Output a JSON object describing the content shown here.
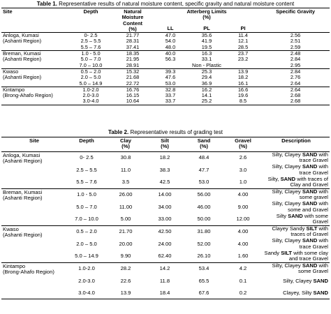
{
  "table1": {
    "caption_label": "Table 1.",
    "caption_text": " Representative results of natural moisture content, specific gravity and natural moisture content",
    "headers": {
      "site": "Site",
      "depth": "Depth",
      "nmc_line1": "Natural",
      "nmc_line2": "Moisture",
      "nmc_line3": "Content",
      "nmc_line4": "(%)",
      "atterberg": "Atterberg Limits",
      "atterberg_unit": "(%)",
      "ll": "LL",
      "pl": "PL",
      "pi": "PI",
      "sg": "Specific Gravity"
    },
    "groups": [
      {
        "site_line1": "Anloga, Kumasi",
        "site_line2": "(Ashanti Region)",
        "rows": [
          {
            "depth": "0- 2.5",
            "nmc": "21.77",
            "ll": "47.0",
            "pl": "35.6",
            "pi": "11.4",
            "sg": "2.56"
          },
          {
            "depth": "2.5 – 5.5",
            "nmc": "28.31",
            "ll": "54.0",
            "pl": "41.9",
            "pi": "12.1",
            "sg": "2.51"
          },
          {
            "depth": "5.5 – 7.6",
            "nmc": "37.41",
            "ll": "48.0",
            "pl": "19.5",
            "pi": "28.5",
            "sg": "2.59"
          }
        ]
      },
      {
        "site_line1": "Breman, Kumasi",
        "site_line2": "(Ashanti Region)",
        "rows": [
          {
            "depth": "1.0 - 5.0",
            "nmc": "18.35",
            "ll": "40.0",
            "pl": "16.3",
            "pi": "23.7",
            "sg": "2.48"
          },
          {
            "depth": "5.0 – 7.0",
            "nmc": "21.95",
            "ll": "56.3",
            "pl": "33.1",
            "pi": "23.2",
            "sg": "2.84"
          },
          {
            "depth": "7.0 – 10.0",
            "nmc": "28.91",
            "ll": "",
            "pl": "Non - Plastic",
            "pi": "",
            "sg": "2.95"
          }
        ]
      },
      {
        "site_line1": "Kwaso",
        "site_line2": "(Ashanti Region)",
        "rows": [
          {
            "depth": "0.5 – 2.0",
            "nmc": "15.32",
            "ll": "39.3",
            "pl": "25.3",
            "pi": "13.9",
            "sg": "2.84"
          },
          {
            "depth": "2.0 – 5.0",
            "nmc": "21.68",
            "ll": "47.6",
            "pl": "29.4",
            "pi": "18.2",
            "sg": "2.76"
          },
          {
            "depth": "5.0 – 14.9",
            "nmc": "22.72",
            "ll": "53.0",
            "pl": "36.9",
            "pi": "16.1",
            "sg": "2.64"
          }
        ]
      },
      {
        "site_line1": "Kintampo",
        "site_line2": "(Brong-Ahafo Region)",
        "rows": [
          {
            "depth": "1.0-2.0",
            "nmc": "16.76",
            "ll": "32.8",
            "pl": "16.2",
            "pi": "16.6",
            "sg": "2.64"
          },
          {
            "depth": "2.0-3.0",
            "nmc": "16.15",
            "ll": "33.7",
            "pl": "14.1",
            "pi": "19.6",
            "sg": "2.68"
          },
          {
            "depth": "3.0-4.0",
            "nmc": "10.64",
            "ll": "33.7",
            "pl": "25.2",
            "pi": "8.5",
            "sg": "2.68"
          }
        ]
      }
    ]
  },
  "table2": {
    "caption_label": "Table 2.",
    "caption_text": " Representative results of grading test",
    "headers": {
      "site": "Site",
      "depth": "Depth",
      "clay": "Clay",
      "silt": "Silt",
      "sand": "Sand",
      "gravel": "Gravel",
      "unit": "(%)",
      "description": "Description"
    },
    "groups": [
      {
        "site_line1": "Anloga, Kumasi",
        "site_line2": "(Ashanti Region)",
        "rows": [
          {
            "depth": "0- 2.5",
            "clay": "30.8",
            "silt": "18.2",
            "sand": "48.4",
            "gravel": "2.6",
            "desc_pre": "Silty, Clayey ",
            "desc_bold": "SAND",
            "desc_post": " with trace Gravel"
          },
          {
            "depth": "2.5 – 5.5",
            "clay": "11.0",
            "silt": "38.3",
            "sand": "47.7",
            "gravel": "3.0",
            "desc_pre": "Silty, Clayey ",
            "desc_bold": "SAND",
            "desc_post": " with trace Gravel"
          },
          {
            "depth": "5.5 – 7.6",
            "clay": "3.5",
            "silt": "42.5",
            "sand": "53.0",
            "gravel": "1.0",
            "desc_pre": "Silty, ",
            "desc_bold": "SAND",
            "desc_post": " with traces of Clay and Gravel"
          }
        ]
      },
      {
        "site_line1": "Breman, Kumasi",
        "site_line2": "(Ashanti Region)",
        "rows": [
          {
            "depth": "1.0 - 5.0",
            "clay": "26.00",
            "silt": "14.00",
            "sand": "56.00",
            "gravel": "4.00",
            "desc_pre": "Silty, Clayey ",
            "desc_bold": "SAND",
            "desc_post": " with some gravel"
          },
          {
            "depth": "5.0 – 7.0",
            "clay": "11.00",
            "silt": "34.00",
            "sand": "46.00",
            "gravel": "9.00",
            "desc_pre": "Silty, Clayey ",
            "desc_bold": "SAND",
            "desc_post": " with some and Gravel"
          },
          {
            "depth": "7.0 – 10.0",
            "clay": "5.00",
            "silt": "33.00",
            "sand": "50.00",
            "gravel": "12.00",
            "desc_pre": "Silty ",
            "desc_bold": "SAND",
            "desc_post": " with some Gravel"
          }
        ]
      },
      {
        "site_line1": "Kwaso",
        "site_line2": "(Ashanti Region)",
        "rows": [
          {
            "depth": "0.5 – 2.0",
            "clay": "21.70",
            "silt": "42.50",
            "sand": "31.80",
            "gravel": "4.00",
            "desc_pre": "Clayey Sandy ",
            "desc_bold": "SILT",
            "desc_post": " with traces of Gravel"
          },
          {
            "depth": "2.0 – 5.0",
            "clay": "20.00",
            "silt": "24.00",
            "sand": "52.00",
            "gravel": "4.00",
            "desc_pre": "Silty, Clayey ",
            "desc_bold": "SAND",
            "desc_post": " with trace Gravel"
          },
          {
            "depth": "5.0 – 14.9",
            "clay": "9.90",
            "silt": "62.40",
            "sand": "26.10",
            "gravel": "1.60",
            "desc_pre": "Sandy ",
            "desc_bold": "SILT",
            "desc_post": " with some clay and trace Gravel"
          }
        ]
      },
      {
        "site_line1": "Kintampo",
        "site_line2": "(Brong-Ahafo Region)",
        "rows": [
          {
            "depth": "1.0-2.0",
            "clay": "28.2",
            "silt": "14.2",
            "sand": "53.4",
            "gravel": "4.2",
            "desc_pre": "Silty, Clayey ",
            "desc_bold": "SAND",
            "desc_post": " with some Gravel"
          },
          {
            "depth": "2.0-3.0",
            "clay": "22.6",
            "silt": "11.8",
            "sand": "65.5",
            "gravel": "0.1",
            "desc_pre": "Silty, Clayey ",
            "desc_bold": "SAND",
            "desc_post": ""
          },
          {
            "depth": "3.0-4.0",
            "clay": "13.9",
            "silt": "18.4",
            "sand": "67.6",
            "gravel": "0.2",
            "desc_pre": "Clayey, Silty ",
            "desc_bold": "SAND",
            "desc_post": ""
          }
        ]
      }
    ]
  }
}
